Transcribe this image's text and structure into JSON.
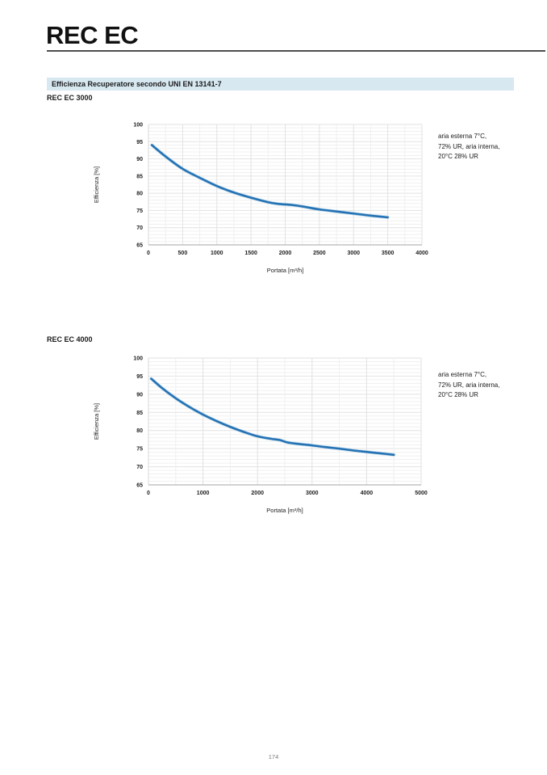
{
  "header": {
    "title": "REC EC"
  },
  "section": {
    "title": "Efficienza Recuperatore secondo UNI EN 13141-7",
    "bg_color": "#d7e8f1"
  },
  "colors": {
    "line": "#2472b4",
    "line_halo": "#9ec6e0",
    "grid_minor": "#f0f0f0",
    "grid_major": "#e2e2e2",
    "axis_left": "#d8d8d8",
    "axis_bottom": "#a6a6a6",
    "tick_text": "#222222",
    "axis_title_text": "#1a1a1a"
  },
  "charts": [
    {
      "model": "REC EC 3000",
      "annotation_lines": [
        "aria esterna 7°C,",
        "72% UR, aria interna,",
        "20°C 28% UR"
      ]
    },
    {
      "model": "REC EC 4000",
      "annotation_lines": [
        "aria esterna 7°C,",
        "72% UR, aria interna,",
        "20°C 28% UR"
      ]
    }
  ],
  "chart_data": [
    {
      "type": "line",
      "title": "REC EC 3000",
      "xlabel": "Portata [m³/h]",
      "ylabel": "Efficienza [%]",
      "xlim": [
        0,
        4000
      ],
      "ylim": [
        65,
        100
      ],
      "xticks": [
        0,
        500,
        1000,
        1500,
        2000,
        2500,
        3000,
        3500,
        4000
      ],
      "yticks": [
        65,
        70,
        75,
        80,
        85,
        90,
        95,
        100
      ],
      "x_minor_step": 250,
      "y_minor_step": 1,
      "grid": true,
      "legend": "none",
      "annotation": "aria esterna 7°C, 72% UR, aria interna, 20°C 28% UR",
      "series": [
        {
          "name": "Efficienza REC EC 3000",
          "x": [
            50,
            250,
            500,
            750,
            1000,
            1250,
            1500,
            1750,
            1900,
            2100,
            2300,
            2500,
            2750,
            3000,
            3250,
            3500
          ],
          "y": [
            94.0,
            90.7,
            87.1,
            84.5,
            82.1,
            80.2,
            78.7,
            77.4,
            76.9,
            76.6,
            76.0,
            75.3,
            74.7,
            74.1,
            73.5,
            73.0
          ]
        }
      ]
    },
    {
      "type": "line",
      "title": "REC EC 4000",
      "xlabel": "Portata [m³/h]",
      "ylabel": "Efficienza [%]",
      "xlim": [
        0,
        5000
      ],
      "ylim": [
        65,
        100
      ],
      "xticks": [
        0,
        1000,
        2000,
        3000,
        4000,
        5000
      ],
      "yticks": [
        65,
        70,
        75,
        80,
        85,
        90,
        95,
        100
      ],
      "x_minor_step": 500,
      "y_minor_step": 1,
      "grid": true,
      "legend": "none",
      "annotation": "aria esterna 7°C, 72% UR, aria interna, 20°C 28% UR",
      "series": [
        {
          "name": "Efficienza REC EC 4000",
          "x": [
            50,
            250,
            500,
            750,
            1000,
            1250,
            1500,
            1750,
            2000,
            2250,
            2400,
            2550,
            2750,
            3000,
            3250,
            3500,
            3750,
            4000,
            4250,
            4500
          ],
          "y": [
            94.3,
            91.7,
            88.9,
            86.5,
            84.4,
            82.6,
            81.0,
            79.6,
            78.4,
            77.7,
            77.4,
            76.7,
            76.3,
            75.9,
            75.4,
            75.0,
            74.5,
            74.1,
            73.7,
            73.3
          ]
        }
      ]
    }
  ],
  "footer": {
    "page_number": "174"
  }
}
